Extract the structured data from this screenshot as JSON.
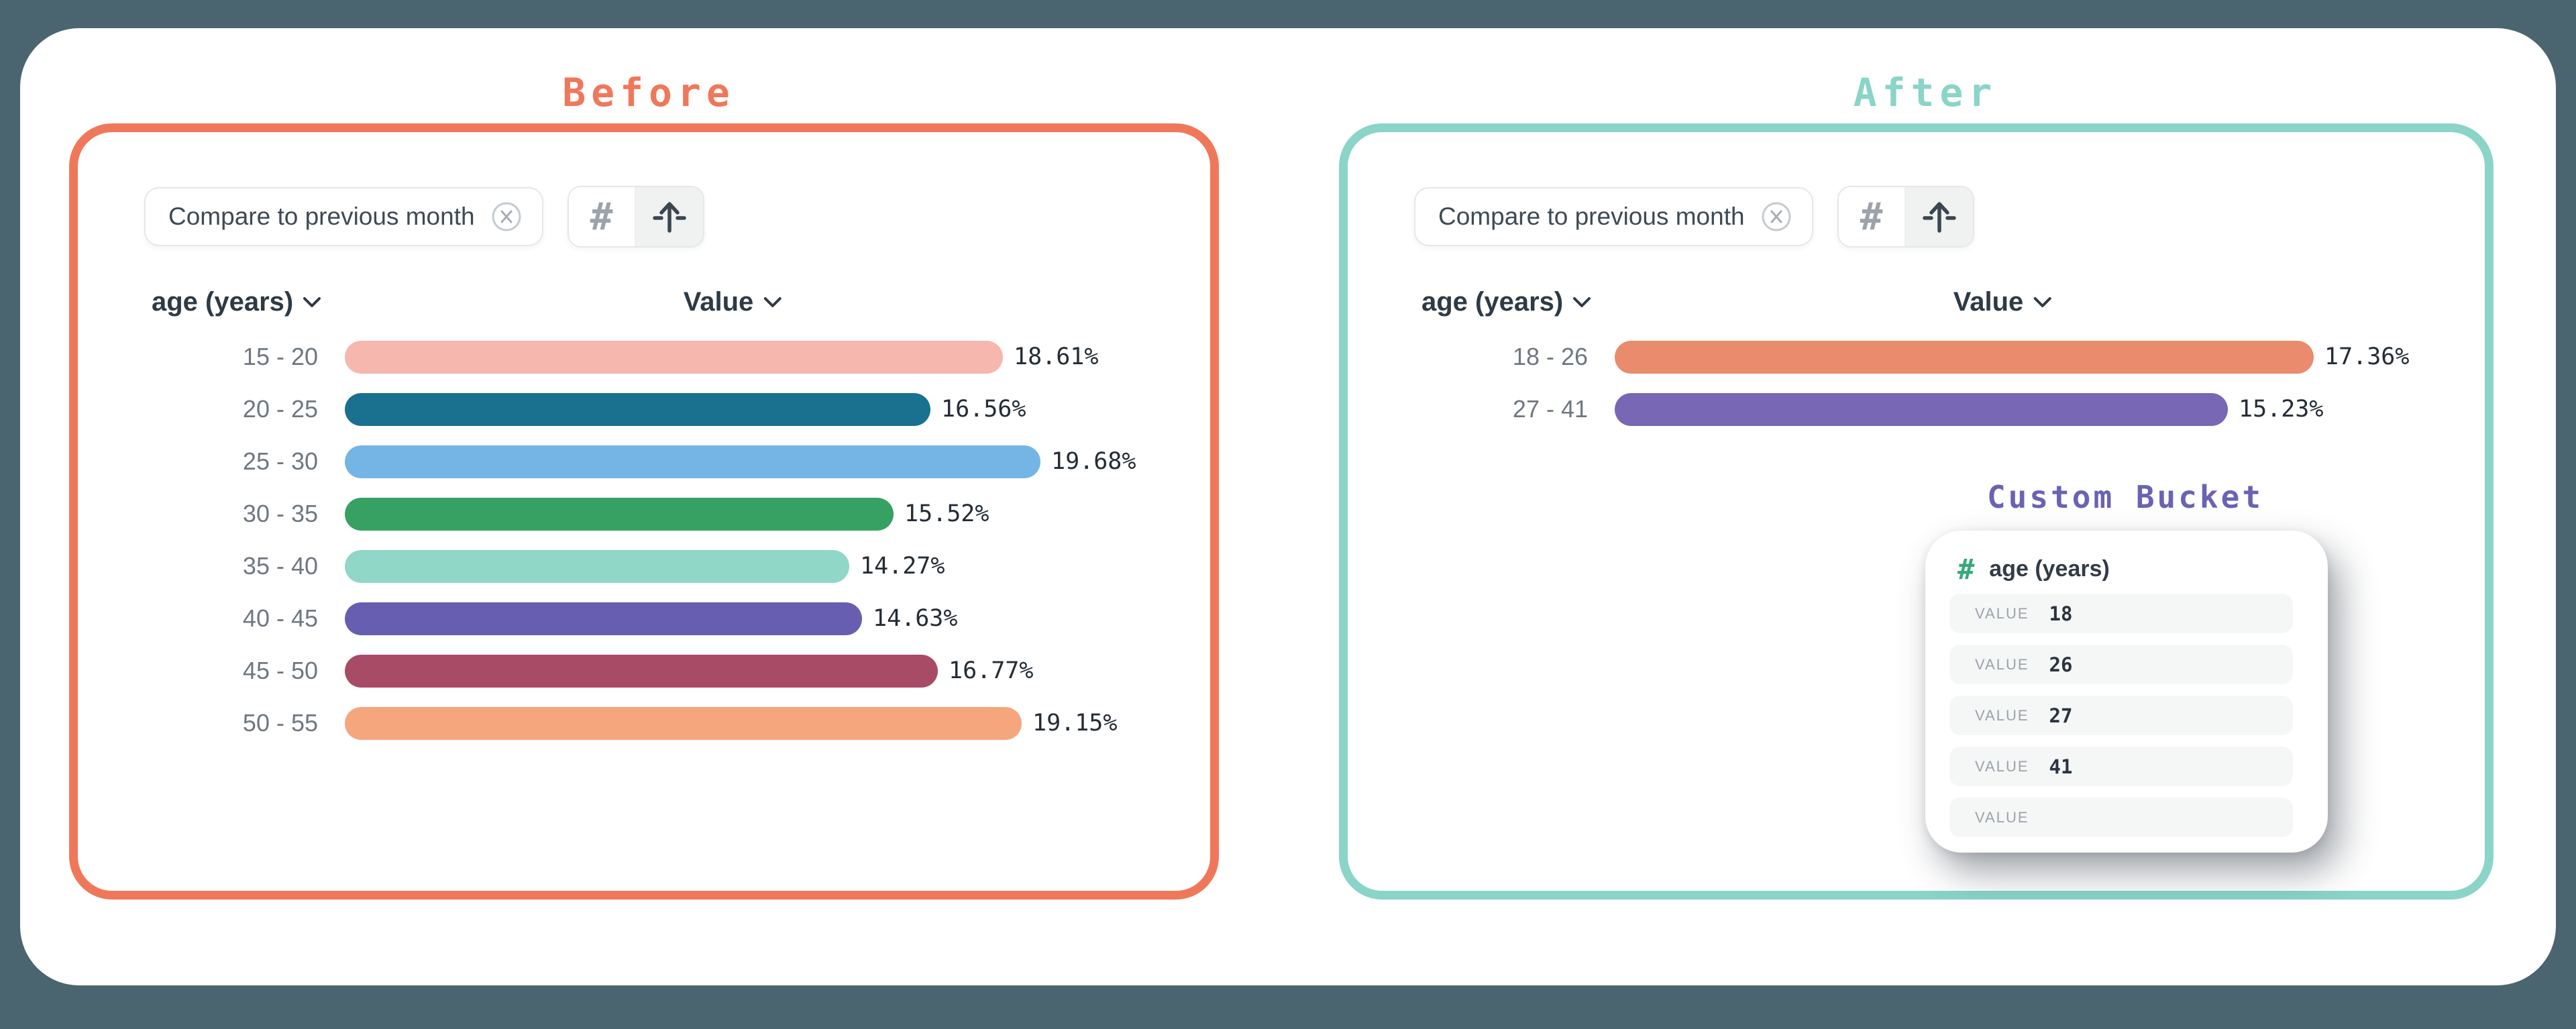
{
  "colors": {
    "background": "#4A6570",
    "card": "#FFFFFF",
    "before_accent": "#F0785A",
    "after_accent": "#8AD4C8",
    "bucket_accent": "#6A63B3",
    "popup_hash_green": "#35A97A"
  },
  "panels": [
    {
      "id": "before",
      "title": "Before",
      "filter_chip": {
        "label": "Compare to previous month",
        "close_icon": "circle-x-icon"
      },
      "view_toggle": {
        "buttons": [
          "hash-icon",
          "bucket-arrow-up-icon"
        ],
        "selected": "bucket-arrow-up-icon"
      },
      "columns": {
        "dimension": "age (years)",
        "measure": "Value"
      },
      "chart_data": {
        "type": "bar",
        "orientation": "horizontal",
        "categories": [
          "15 - 20",
          "20 - 25",
          "25 - 30",
          "30 - 35",
          "35 - 40",
          "40 - 45",
          "45 - 50",
          "50 - 55"
        ],
        "values": [
          18.61,
          16.56,
          19.68,
          15.52,
          14.27,
          14.63,
          16.77,
          19.15
        ],
        "value_labels": [
          "18.61%",
          "16.56%",
          "19.68%",
          "15.52%",
          "14.27%",
          "14.63%",
          "16.77%",
          "19.15%"
        ],
        "bar_colors": [
          "#F5B7AE",
          "#19718F",
          "#74B5E6",
          "#36A163",
          "#90D7C8",
          "#675DB1",
          "#A84B66",
          "#F6A67D"
        ],
        "xlabel": "Value",
        "ylabel": "age (years)",
        "unit": "%"
      }
    },
    {
      "id": "after",
      "title": "After",
      "filter_chip": {
        "label": "Compare to previous month",
        "close_icon": "circle-x-icon"
      },
      "view_toggle": {
        "buttons": [
          "hash-icon",
          "bucket-arrow-up-icon"
        ],
        "selected": "bucket-arrow-up-icon"
      },
      "columns": {
        "dimension": "age (years)",
        "measure": "Value"
      },
      "chart_data": {
        "type": "bar",
        "orientation": "horizontal",
        "categories": [
          "18 - 26",
          "27 - 41"
        ],
        "values": [
          17.36,
          15.23
        ],
        "value_labels": [
          "17.36%",
          "15.23%"
        ],
        "bar_colors": [
          "#E98B6C",
          "#7767B5"
        ],
        "xlabel": "Value",
        "ylabel": "age (years)",
        "unit": "%"
      }
    }
  ],
  "custom_bucket": {
    "title": "Custom Bucket",
    "field": "age (years)",
    "field_icon": "numeric-hash-icon",
    "rows": [
      {
        "label": "VALUE",
        "value": "18"
      },
      {
        "label": "VALUE",
        "value": "26"
      },
      {
        "label": "VALUE",
        "value": "27"
      },
      {
        "label": "VALUE",
        "value": "41"
      },
      {
        "label": "VALUE",
        "value": ""
      }
    ]
  }
}
